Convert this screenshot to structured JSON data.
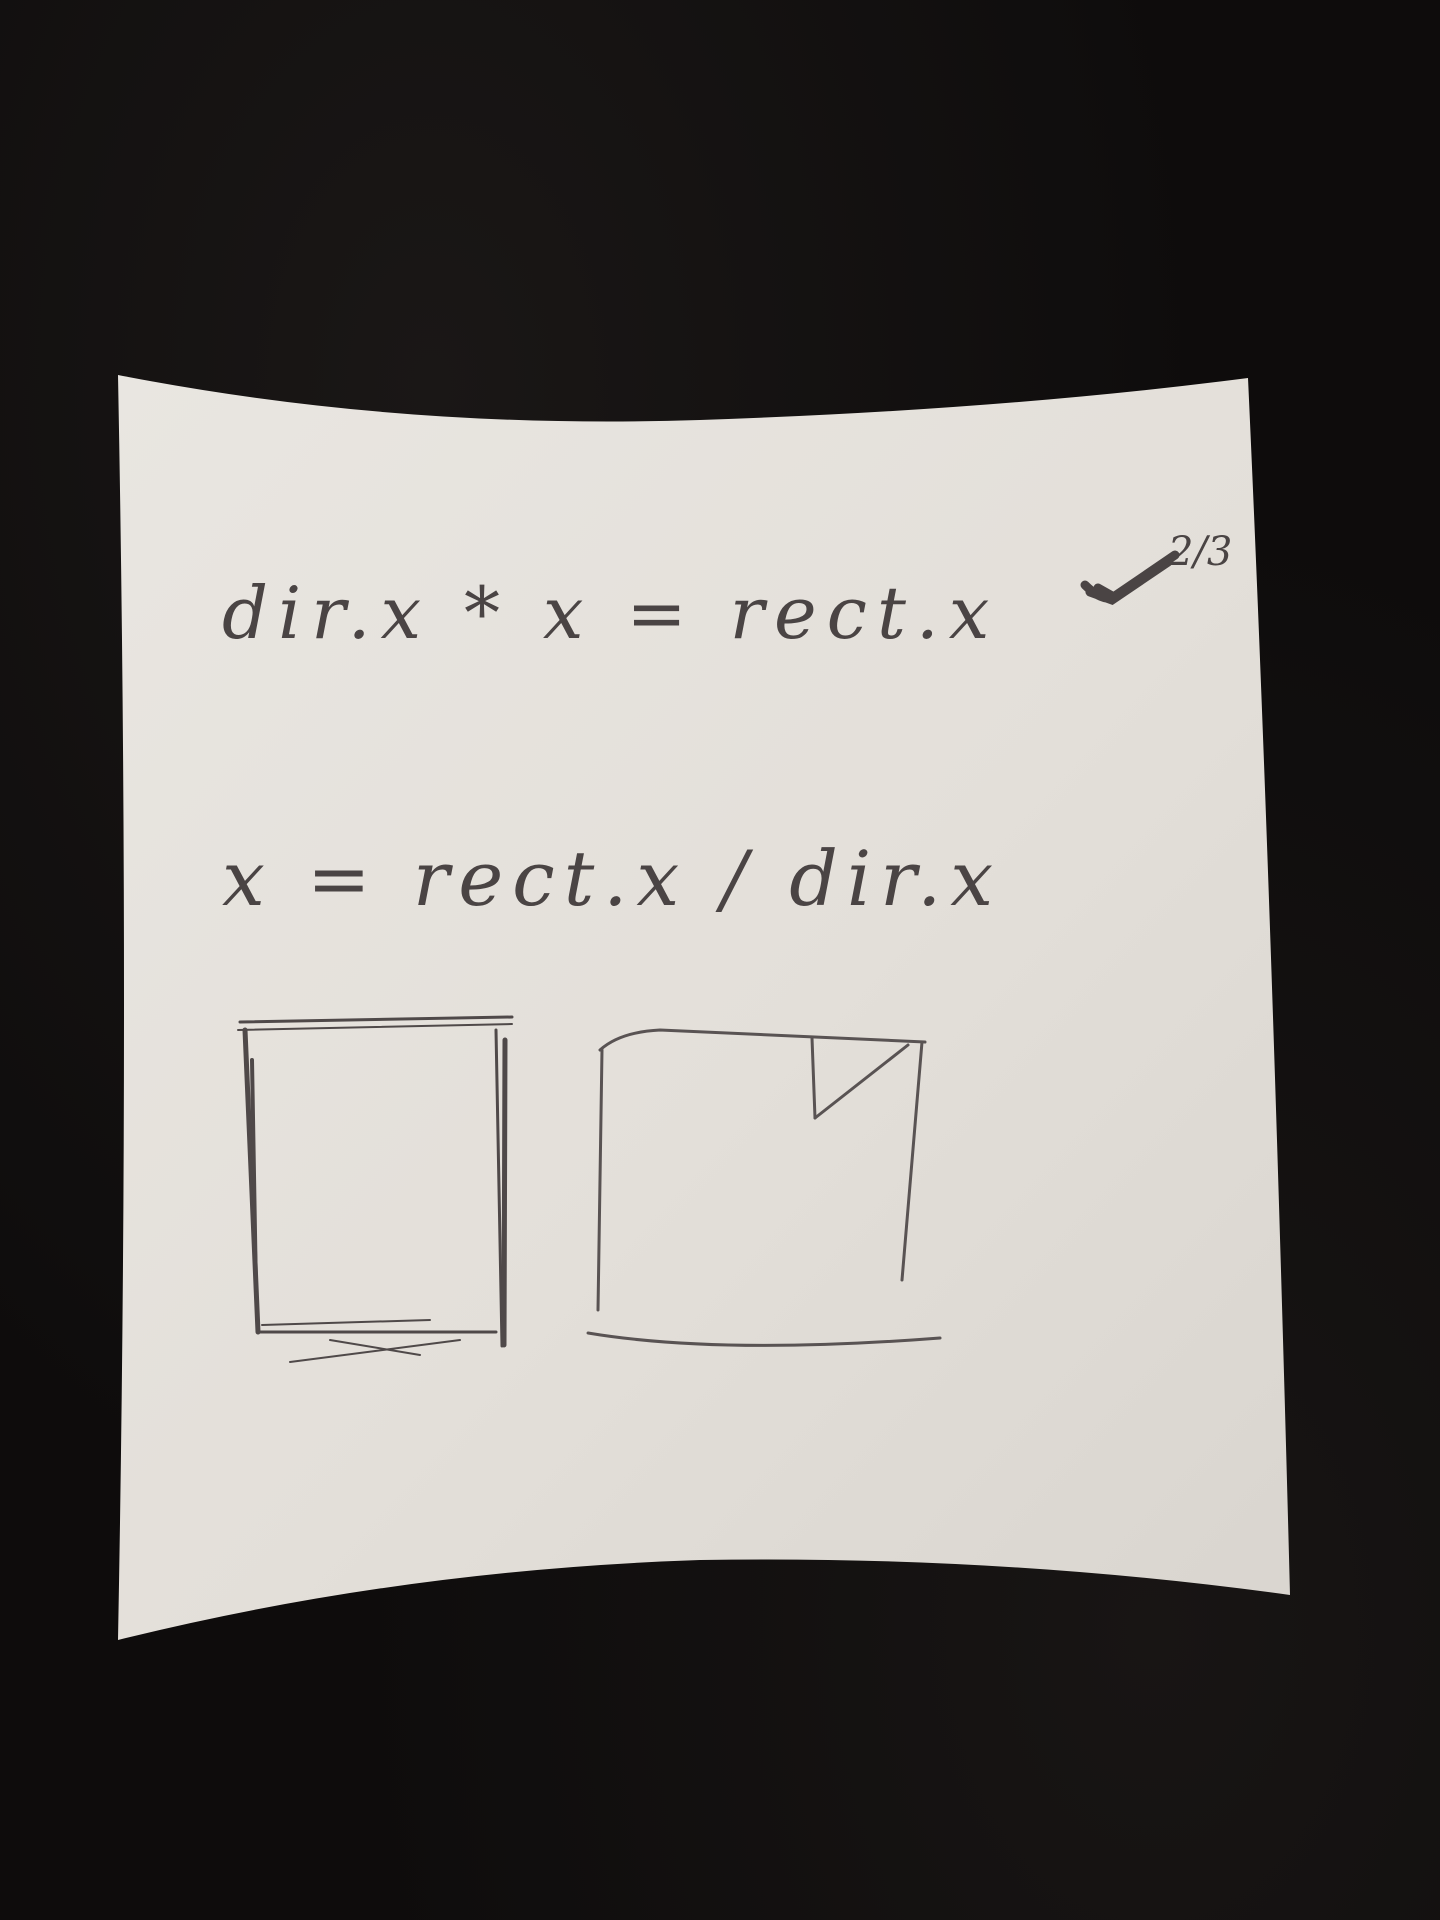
{
  "note": {
    "line1": "dir.x * x = rect.x",
    "line1_annotation": "2/3",
    "line2": "x = rect.x / dir.x"
  },
  "colors": {
    "background": "#0e0c0c",
    "paper": "#e6e2dc",
    "pencil": "#4a4444"
  }
}
